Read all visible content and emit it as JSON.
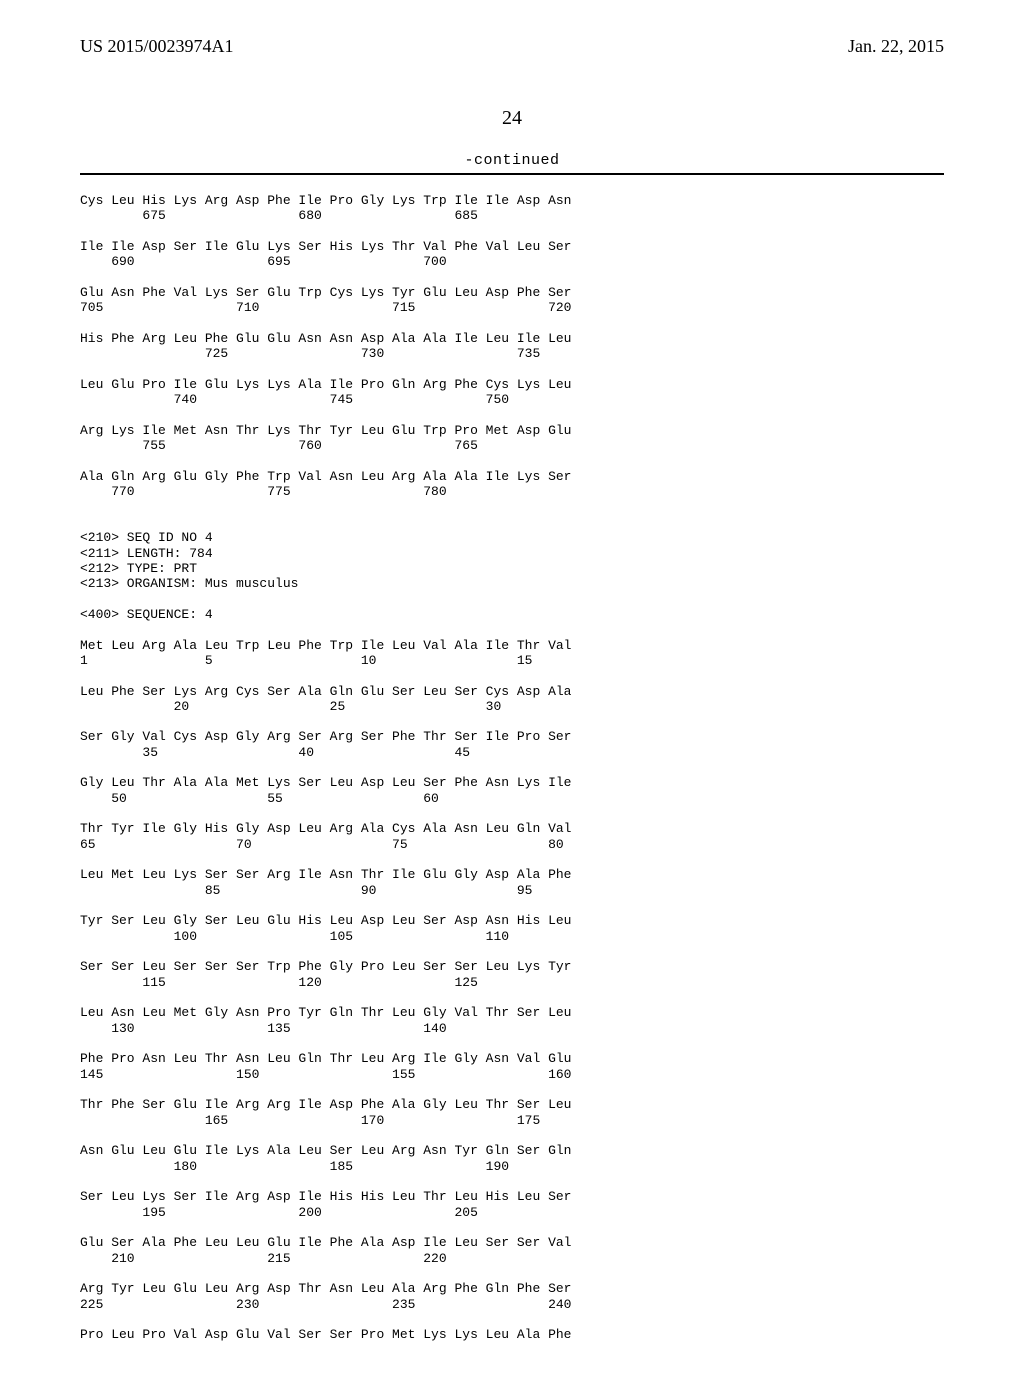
{
  "header": {
    "left": "US 2015/0023974A1",
    "right": "Jan. 22, 2015"
  },
  "pagenum": "24",
  "continued": "-continued",
  "seq_lines": [
    "Cys Leu His Lys Arg Asp Phe Ile Pro Gly Lys Trp Ile Ile Asp Asn",
    "        675                 680                 685",
    "",
    "Ile Ile Asp Ser Ile Glu Lys Ser His Lys Thr Val Phe Val Leu Ser",
    "    690                 695                 700",
    "",
    "Glu Asn Phe Val Lys Ser Glu Trp Cys Lys Tyr Glu Leu Asp Phe Ser",
    "705                 710                 715                 720",
    "",
    "His Phe Arg Leu Phe Glu Glu Asn Asn Asp Ala Ala Ile Leu Ile Leu",
    "                725                 730                 735",
    "",
    "Leu Glu Pro Ile Glu Lys Lys Ala Ile Pro Gln Arg Phe Cys Lys Leu",
    "            740                 745                 750",
    "",
    "Arg Lys Ile Met Asn Thr Lys Thr Tyr Leu Glu Trp Pro Met Asp Glu",
    "        755                 760                 765",
    "",
    "Ala Gln Arg Glu Gly Phe Trp Val Asn Leu Arg Ala Ala Ile Lys Ser",
    "    770                 775                 780",
    "",
    "",
    "<210> SEQ ID NO 4",
    "<211> LENGTH: 784",
    "<212> TYPE: PRT",
    "<213> ORGANISM: Mus musculus",
    "",
    "<400> SEQUENCE: 4",
    "",
    "Met Leu Arg Ala Leu Trp Leu Phe Trp Ile Leu Val Ala Ile Thr Val",
    "1               5                   10                  15",
    "",
    "Leu Phe Ser Lys Arg Cys Ser Ala Gln Glu Ser Leu Ser Cys Asp Ala",
    "            20                  25                  30",
    "",
    "Ser Gly Val Cys Asp Gly Arg Ser Arg Ser Phe Thr Ser Ile Pro Ser",
    "        35                  40                  45",
    "",
    "Gly Leu Thr Ala Ala Met Lys Ser Leu Asp Leu Ser Phe Asn Lys Ile",
    "    50                  55                  60",
    "",
    "Thr Tyr Ile Gly His Gly Asp Leu Arg Ala Cys Ala Asn Leu Gln Val",
    "65                  70                  75                  80",
    "",
    "Leu Met Leu Lys Ser Ser Arg Ile Asn Thr Ile Glu Gly Asp Ala Phe",
    "                85                  90                  95",
    "",
    "Tyr Ser Leu Gly Ser Leu Glu His Leu Asp Leu Ser Asp Asn His Leu",
    "            100                 105                 110",
    "",
    "Ser Ser Leu Ser Ser Ser Trp Phe Gly Pro Leu Ser Ser Leu Lys Tyr",
    "        115                 120                 125",
    "",
    "Leu Asn Leu Met Gly Asn Pro Tyr Gln Thr Leu Gly Val Thr Ser Leu",
    "    130                 135                 140",
    "",
    "Phe Pro Asn Leu Thr Asn Leu Gln Thr Leu Arg Ile Gly Asn Val Glu",
    "145                 150                 155                 160",
    "",
    "Thr Phe Ser Glu Ile Arg Arg Ile Asp Phe Ala Gly Leu Thr Ser Leu",
    "                165                 170                 175",
    "",
    "Asn Glu Leu Glu Ile Lys Ala Leu Ser Leu Arg Asn Tyr Gln Ser Gln",
    "            180                 185                 190",
    "",
    "Ser Leu Lys Ser Ile Arg Asp Ile His His Leu Thr Leu His Leu Ser",
    "        195                 200                 205",
    "",
    "Glu Ser Ala Phe Leu Leu Glu Ile Phe Ala Asp Ile Leu Ser Ser Val",
    "    210                 215                 220",
    "",
    "Arg Tyr Leu Glu Leu Arg Asp Thr Asn Leu Ala Arg Phe Gln Phe Ser",
    "225                 230                 235                 240",
    "",
    "Pro Leu Pro Val Asp Glu Val Ser Ser Pro Met Lys Lys Leu Ala Phe"
  ]
}
